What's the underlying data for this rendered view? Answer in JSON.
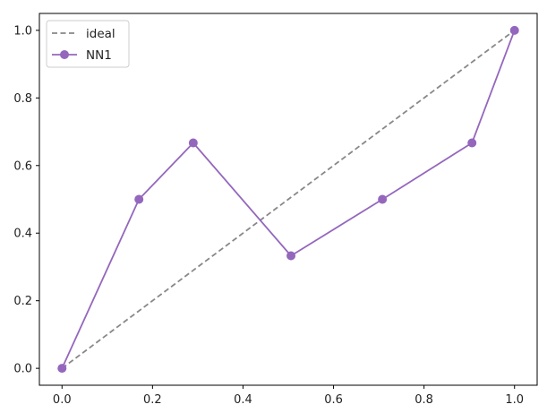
{
  "chart_data": {
    "type": "line",
    "title": "",
    "xlabel": "",
    "ylabel": "",
    "xlim": [
      -0.05,
      1.05
    ],
    "ylim": [
      -0.05,
      1.05
    ],
    "grid": false,
    "legend_placement": "upper-left",
    "xticks": [
      "0.0",
      "0.2",
      "0.4",
      "0.6",
      "0.8",
      "1.0"
    ],
    "yticks": [
      "0.0",
      "0.2",
      "0.4",
      "0.6",
      "0.8",
      "1.0"
    ],
    "series": [
      {
        "name": "ideal",
        "style": "dashed",
        "color": "#888888",
        "markers": false,
        "x": [
          0,
          1
        ],
        "y": [
          0,
          1
        ]
      },
      {
        "name": "NN1",
        "style": "solid",
        "color": "#9467bd",
        "markers": true,
        "x": [
          0.0,
          0.17,
          0.29,
          0.506,
          0.708,
          0.906,
          1.0
        ],
        "y": [
          0.0,
          0.5,
          0.667,
          0.333,
          0.5,
          0.667,
          1.0
        ]
      }
    ]
  }
}
